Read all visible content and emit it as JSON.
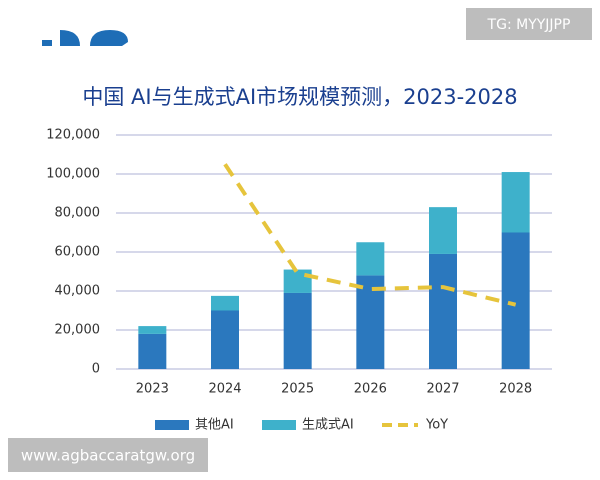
{
  "watermarks": {
    "top": "TG: MYYJJPP",
    "bottom": "www.agbaccaratgw.org"
  },
  "chart_data": {
    "type": "bar",
    "stacked": true,
    "title": "中国 AI与生成式AI市场规模预测，2023-2028",
    "categories": [
      "2023",
      "2024",
      "2025",
      "2026",
      "2027",
      "2028"
    ],
    "series": [
      {
        "name": "其他AI",
        "color": "#2b78be",
        "values": [
          18000,
          30000,
          39000,
          48000,
          59000,
          70000
        ]
      },
      {
        "name": "生成式AI",
        "color": "#3eb1cb",
        "values": [
          4000,
          7500,
          12000,
          17000,
          24000,
          31000
        ]
      },
      {
        "name": "YoY",
        "type": "line",
        "dashed": true,
        "color": "#e6c43c",
        "values": [
          null,
          105000,
          49000,
          41000,
          42000,
          33000
        ]
      }
    ],
    "ylim": [
      0,
      120000
    ],
    "yticks": [
      0,
      {
        "value": 20000,
        "label": "20,000"
      },
      {
        "value": 40000,
        "label": "40,000"
      },
      {
        "value": 60000,
        "label": "60,000"
      },
      {
        "value": 80000,
        "label": "80,000"
      },
      {
        "value": 100000,
        "label": "100,000"
      },
      {
        "value": 120000,
        "label": "120,000"
      }
    ],
    "grid": true,
    "legend": "bottom"
  }
}
